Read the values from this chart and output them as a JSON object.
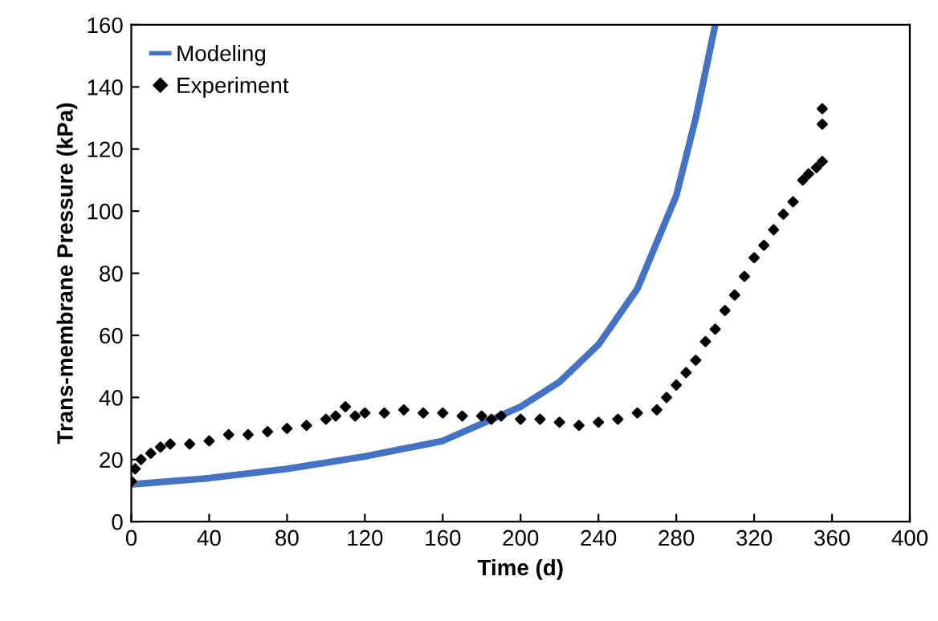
{
  "chart_data": {
    "type": "line",
    "xlabel": "Time (d)",
    "ylabel": "Trans-membrane Pressure (kPa)",
    "xlim": [
      0,
      400
    ],
    "xticks": [
      0,
      40,
      80,
      120,
      160,
      200,
      240,
      280,
      320,
      360,
      400
    ],
    "ylim": [
      0,
      160
    ],
    "yticks": [
      0,
      20,
      40,
      60,
      80,
      100,
      120,
      140,
      160
    ],
    "grid": false,
    "legend": "top left",
    "series": [
      {
        "name": "Modeling",
        "color": "#4472c4",
        "marker": "none",
        "x": [
          0,
          40,
          80,
          120,
          160,
          200,
          220,
          240,
          260,
          280,
          290,
          300
        ],
        "values": [
          12,
          14,
          17,
          21,
          26,
          37,
          45,
          57,
          75,
          105,
          130,
          160
        ]
      },
      {
        "name": "Experiment",
        "type": "scatter",
        "color": "#000000",
        "marker": "diamond",
        "x": [
          0,
          2,
          5,
          10,
          15,
          20,
          30,
          40,
          50,
          60,
          70,
          80,
          90,
          100,
          105,
          110,
          115,
          120,
          130,
          140,
          150,
          160,
          170,
          180,
          185,
          190,
          200,
          210,
          220,
          230,
          240,
          250,
          260,
          270,
          275,
          280,
          285,
          290,
          295,
          300,
          305,
          310,
          315,
          320,
          325,
          330,
          335,
          340,
          345,
          348,
          352,
          355,
          355,
          355
        ],
        "values": [
          13,
          17,
          20,
          22,
          24,
          25,
          25,
          26,
          28,
          28,
          29,
          30,
          31,
          33,
          34,
          37,
          34,
          35,
          35,
          36,
          35,
          35,
          34,
          34,
          33,
          34,
          33,
          33,
          32,
          31,
          32,
          33,
          35,
          36,
          40,
          44,
          48,
          52,
          58,
          62,
          68,
          73,
          79,
          85,
          89,
          94,
          99,
          103,
          110,
          112,
          114,
          116,
          128,
          133
        ]
      }
    ]
  }
}
